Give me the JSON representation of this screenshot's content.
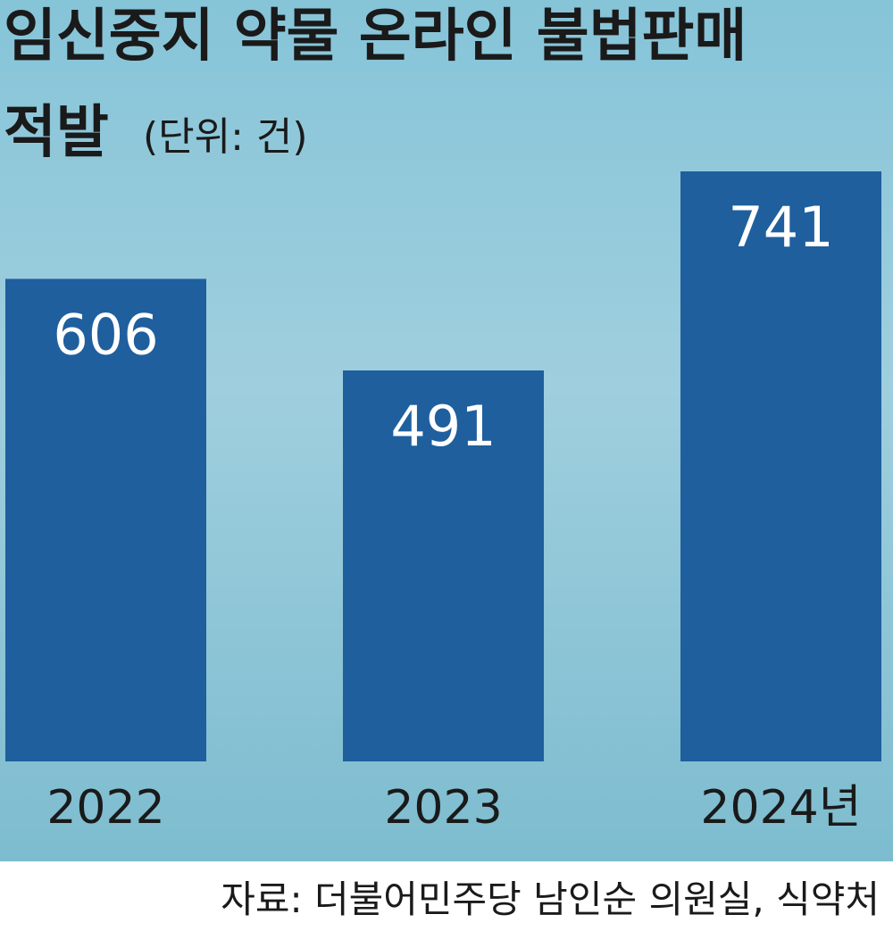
{
  "chart_data": {
    "type": "bar",
    "title": [
      "임신중지 약물 온라인 불법판매",
      "적발"
    ],
    "subtitle": "(단위: 건)",
    "categories": [
      "2022",
      "2023",
      "2024년"
    ],
    "values": [
      606,
      491,
      741
    ],
    "color": "#1f5f9e",
    "source": "자료: 더불어민주당 남인순 의원실, 식약처"
  }
}
